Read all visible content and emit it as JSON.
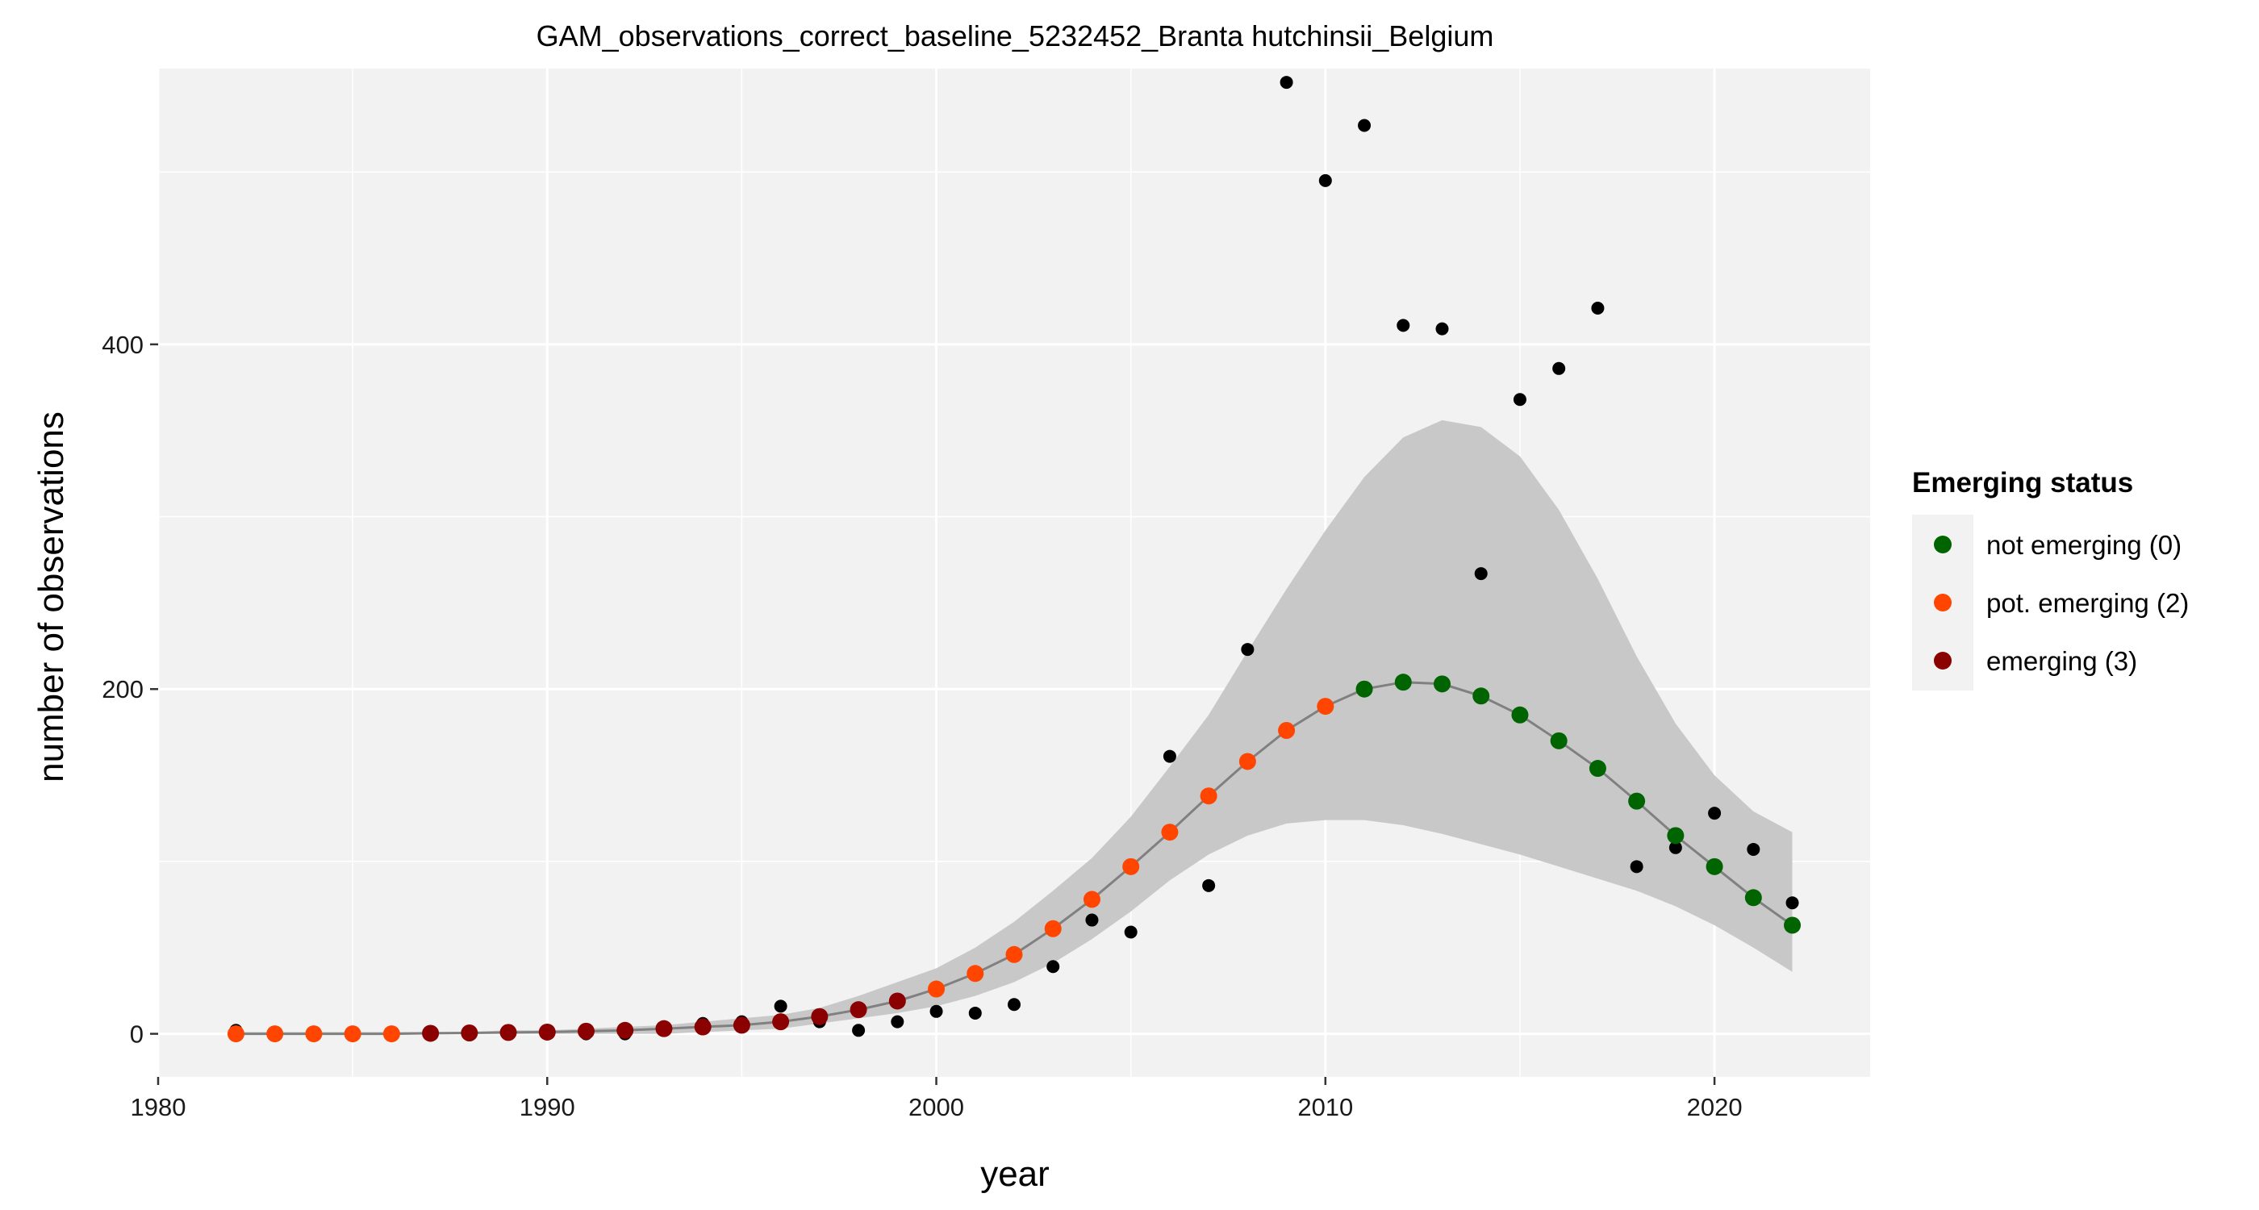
{
  "chart_data": {
    "type": "scatter",
    "title": "GAM_observations_correct_baseline_5232452_Branta hutchinsii_Belgium",
    "xlabel": "year",
    "ylabel": "number of observations",
    "xlim": [
      1980,
      2024
    ],
    "ylim": [
      -25,
      560
    ],
    "x_ticks": [
      1980,
      1990,
      2000,
      2010,
      2020
    ],
    "y_ticks": [
      0,
      200,
      400
    ],
    "grid": true,
    "legend": {
      "title": "Emerging status",
      "placement": "right",
      "entries": [
        {
          "label": "not emerging (0)",
          "color": "#006400"
        },
        {
          "label": "pot. emerging (2)",
          "color": "#FF4500"
        },
        {
          "label": "emerging (3)",
          "color": "#8B0000"
        }
      ]
    },
    "observations": {
      "color": "#000000",
      "x": [
        1982,
        1983,
        1984,
        1985,
        1986,
        1987,
        1988,
        1989,
        1990,
        1991,
        1992,
        1993,
        1994,
        1995,
        1996,
        1997,
        1998,
        1999,
        2000,
        2001,
        2002,
        2003,
        2004,
        2005,
        2006,
        2007,
        2008,
        2009,
        2010,
        2011,
        2012,
        2013,
        2014,
        2015,
        2016,
        2017,
        2018,
        2019,
        2020,
        2021,
        2022
      ],
      "y": [
        2,
        0,
        0,
        0,
        0,
        0,
        0,
        0,
        0,
        0,
        0,
        2,
        6,
        7,
        16,
        7,
        2,
        7,
        13,
        12,
        17,
        39,
        66,
        59,
        161,
        86,
        223,
        552,
        495,
        527,
        411,
        409,
        267,
        368,
        386,
        421,
        97,
        108,
        128,
        107,
        76
      ]
    },
    "fit": {
      "line_color": "#808080",
      "band_color": "#c8c8c8",
      "x": [
        1982,
        1983,
        1984,
        1985,
        1986,
        1987,
        1988,
        1989,
        1990,
        1991,
        1992,
        1993,
        1994,
        1995,
        1996,
        1997,
        1998,
        1999,
        2000,
        2001,
        2002,
        2003,
        2004,
        2005,
        2006,
        2007,
        2008,
        2009,
        2010,
        2011,
        2012,
        2013,
        2014,
        2015,
        2016,
        2017,
        2018,
        2019,
        2020,
        2021,
        2022
      ],
      "y": [
        0,
        0,
        0,
        0,
        0,
        0.3,
        0.5,
        0.8,
        1,
        1.5,
        2,
        3,
        4,
        5,
        7,
        10,
        14,
        19,
        26,
        35,
        46,
        61,
        78,
        97,
        117,
        138,
        158,
        176,
        190,
        200,
        204,
        203,
        196,
        185,
        170,
        154,
        135,
        115,
        97,
        79,
        63
      ],
      "lower": [
        0,
        0,
        0,
        0,
        0,
        0,
        0,
        0,
        0,
        0,
        0,
        0,
        1,
        2,
        3,
        6,
        9,
        12,
        16,
        22,
        30,
        41,
        55,
        71,
        89,
        104,
        115,
        122,
        124,
        124,
        121,
        116,
        110,
        104,
        97,
        90,
        83,
        74,
        63,
        50,
        36
      ],
      "upper": [
        1,
        1,
        1,
        1,
        1,
        1,
        1,
        2,
        2,
        3,
        4,
        5,
        7,
        9,
        11,
        15,
        22,
        30,
        38,
        50,
        65,
        83,
        102,
        126,
        155,
        185,
        222,
        258,
        292,
        323,
        346,
        356,
        352,
        335,
        304,
        264,
        219,
        180,
        150,
        129,
        117
      ],
      "status": [
        2,
        2,
        2,
        2,
        2,
        3,
        3,
        3,
        3,
        3,
        3,
        3,
        3,
        3,
        3,
        3,
        3,
        3,
        2,
        2,
        2,
        2,
        2,
        2,
        2,
        2,
        2,
        2,
        2,
        0,
        0,
        0,
        0,
        0,
        0,
        0,
        0,
        0,
        0,
        0,
        0
      ]
    },
    "status_colors": {
      "0": "#006400",
      "2": "#FF4500",
      "3": "#8B0000"
    }
  }
}
